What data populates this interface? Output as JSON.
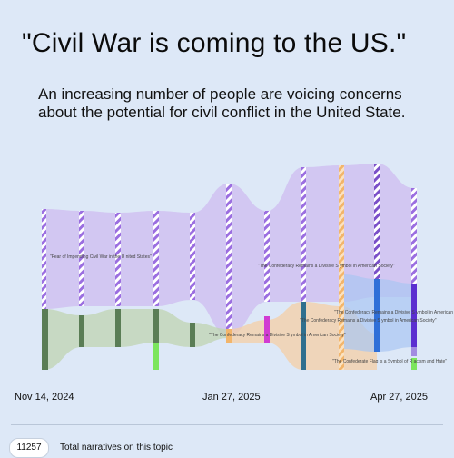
{
  "headline": "\"Civil War is coming to the US.\"",
  "subheadline": "An increasing number of people are voicing concerns about the potential for civil conflict in the United State.",
  "dates": {
    "start": "Nov 14, 2024",
    "middle": "Jan 27, 2025",
    "end": "Apr 27, 2025"
  },
  "footer": {
    "count": "11257",
    "label": "Total narratives on this topic"
  },
  "narratives": [
    {
      "name": "Fear of Impending Civil War in the United States",
      "label": "\"Fear of Impending Civil War in the U nited States\"",
      "color": "#b79ae8"
    },
    {
      "name": "The Confederacy Remains a Divisive Symbol in American Society",
      "label": "\"The Confederacy Remains a Divisive S ymbol in American Society\"",
      "color": "#f2c38a"
    },
    {
      "name": "The Confederate Flag is a Symbol of Racism and Hate",
      "label": "\"The Confederate Flag is a Symbol of R acism and Hate\"",
      "color": "#7fd86a"
    }
  ],
  "colors": {
    "background": "#dde8f7",
    "purple": "#9b6ee0",
    "green": "#5a7d55",
    "bright_green": "#7be55c",
    "orange": "#f2b56b",
    "blue": "#2f6fd8",
    "magenta": "#d13bd2"
  }
}
